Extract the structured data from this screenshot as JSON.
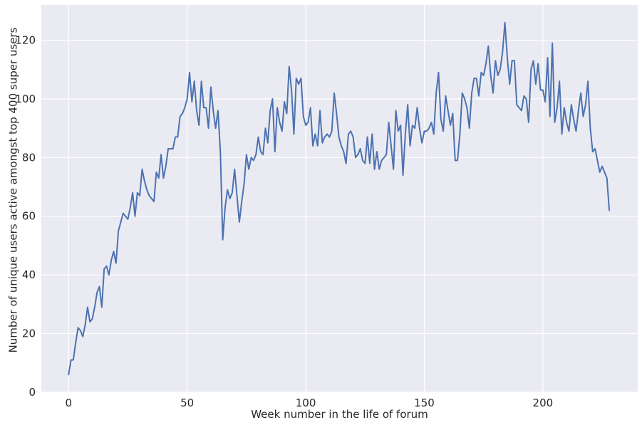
{
  "chart_data": {
    "type": "line",
    "title": "",
    "xlabel": "Week number in the life of forum",
    "ylabel": "Number of unique users active amongst top 400 super users",
    "xlim": [
      -11.5,
      240
    ],
    "ylim": [
      0,
      132
    ],
    "x_ticks": [
      0,
      50,
      100,
      150,
      200
    ],
    "y_ticks": [
      0,
      20,
      40,
      60,
      80,
      100,
      120
    ],
    "grid": true,
    "colors": {
      "background": "#eaeaf2",
      "grid": "#ffffff",
      "line": "#4c72b0",
      "text": "#262626"
    },
    "series": [
      {
        "name": "",
        "x_start": 0,
        "x_step": 1,
        "values": [
          6,
          11,
          11,
          17,
          22,
          21,
          19,
          23,
          29,
          24,
          25,
          29,
          34,
          36,
          29,
          42,
          43,
          40,
          45,
          48,
          44,
          55,
          58,
          61,
          60,
          59,
          63,
          68,
          60,
          68,
          67,
          76,
          72,
          69,
          67,
          66,
          65,
          75,
          73,
          81,
          73,
          77,
          83,
          83,
          83,
          87,
          87,
          94,
          95,
          97,
          100,
          109,
          99,
          106,
          96,
          91,
          106,
          97,
          97,
          90,
          104,
          96,
          90,
          96,
          82,
          52,
          63,
          69,
          66,
          68,
          76,
          67,
          58,
          65,
          71,
          81,
          76,
          80,
          79,
          81,
          87,
          82,
          81,
          90,
          85,
          96,
          100,
          82,
          97,
          92,
          89,
          99,
          95,
          111,
          103,
          88,
          107,
          105,
          107,
          94,
          91,
          92,
          97,
          84,
          88,
          84,
          96,
          85,
          87,
          88,
          87,
          89,
          102,
          95,
          87,
          84,
          82,
          78,
          88,
          89,
          87,
          80,
          81,
          83,
          79,
          78,
          87,
          78,
          88,
          76,
          82,
          76,
          79,
          80,
          81,
          92,
          84,
          76,
          96,
          89,
          91,
          74,
          88,
          98,
          84,
          91,
          90,
          97,
          90,
          85,
          89,
          89,
          90,
          92,
          88,
          102,
          109,
          93,
          89,
          101,
          96,
          91,
          95,
          79,
          79,
          88,
          102,
          100,
          97,
          90,
          102,
          107,
          107,
          101,
          109,
          108,
          112,
          118,
          108,
          102,
          113,
          108,
          110,
          116,
          126,
          114,
          105,
          113,
          113,
          98,
          97,
          96,
          101,
          100,
          92,
          110,
          113,
          105,
          112,
          103,
          103,
          99,
          114,
          94,
          119,
          92,
          97,
          106,
          88,
          97,
          92,
          89,
          98,
          93,
          89,
          96,
          102,
          94,
          98,
          106,
          90,
          82,
          83,
          79,
          75,
          77,
          75,
          73,
          62
        ]
      }
    ]
  }
}
